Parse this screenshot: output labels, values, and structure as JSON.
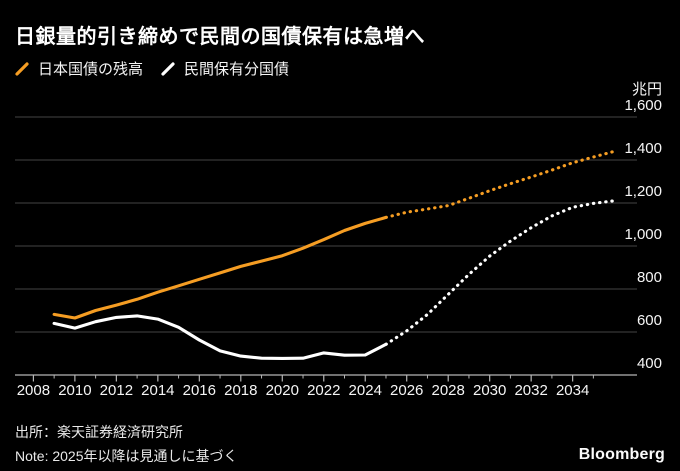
{
  "header": {
    "title": "日銀量的引き締めで民間の国債保有は急増へ"
  },
  "legend": [
    {
      "label": "日本国債の残高",
      "color": "#f59d23",
      "marker": "slash-icon"
    },
    {
      "label": "民間保有分国債",
      "color": "#ffffff",
      "marker": "slash-icon"
    }
  ],
  "colors": {
    "background": "#000000",
    "orange_series": "#f59d23",
    "white_series": "#ffffff",
    "gridline": "#454545",
    "axis_line": "#b5b5b5",
    "text": "#f5f5f5"
  },
  "chart_data": {
    "type": "line",
    "title": "日銀量的引き締めで民間の国債保有は急増へ",
    "xlabel": "",
    "ylabel": "兆円",
    "unit_label": "兆円",
    "grid": "horizontal",
    "legend_position": "top-left",
    "ylim": [
      400,
      1600
    ],
    "yticks": [
      {
        "value": 400,
        "label": "400"
      },
      {
        "value": 600,
        "label": "600"
      },
      {
        "value": 800,
        "label": "800"
      },
      {
        "value": 1000,
        "label": "1,000"
      },
      {
        "value": 1200,
        "label": "1,200"
      },
      {
        "value": 1400,
        "label": "1,400"
      },
      {
        "value": 1600,
        "label": "1,600"
      }
    ],
    "xticks_major": [
      2008,
      2010,
      2012,
      2014,
      2016,
      2018,
      2020,
      2022,
      2024,
      2026,
      2028,
      2030,
      2032,
      2034
    ],
    "xticks_minor": [
      2009,
      2011,
      2013,
      2015,
      2017,
      2019,
      2021,
      2023,
      2025,
      2027,
      2029,
      2031,
      2033,
      2035
    ],
    "x": [
      2009,
      2010,
      2011,
      2012,
      2013,
      2014,
      2015,
      2016,
      2017,
      2018,
      2019,
      2020,
      2021,
      2022,
      2023,
      2024,
      2025,
      2026,
      2027,
      2028,
      2029,
      2030,
      2031,
      2032,
      2033,
      2034,
      2035,
      2036
    ],
    "forecast_start": 2025,
    "series": [
      {
        "name": "日本国債の残高",
        "color": "#f59d23",
        "style_actual": "solid",
        "style_forecast": "dotted",
        "values": [
          682,
          665,
          700,
          725,
          752,
          785,
          815,
          845,
          875,
          905,
          930,
          955,
          990,
          1030,
          1072,
          1105,
          1133,
          1157,
          1172,
          1188,
          1222,
          1257,
          1290,
          1321,
          1353,
          1387,
          1414,
          1440
        ]
      },
      {
        "name": "民間保有分国債",
        "color": "#ffffff",
        "style_actual": "solid",
        "style_forecast": "dotted",
        "values": [
          640,
          618,
          648,
          668,
          675,
          660,
          622,
          563,
          512,
          488,
          478,
          477,
          478,
          503,
          492,
          493,
          543,
          605,
          682,
          775,
          868,
          953,
          1023,
          1085,
          1140,
          1180,
          1198,
          1210
        ]
      }
    ]
  },
  "footer": {
    "source": "出所：楽天証券経済研究所",
    "note": "Note: 2025年以降は見通しに基づく",
    "brand": "Bloomberg"
  }
}
